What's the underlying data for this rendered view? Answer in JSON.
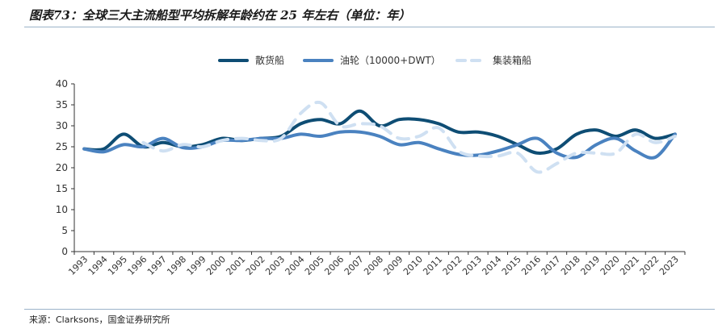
{
  "title": "图表73：全球三大主流船型平均拆解年龄约在 25 年左右（单位：年）",
  "source": "来源：Clarksons，国金证券研究所",
  "chart_data": {
    "type": "line",
    "title": "图表73：全球三大主流船型平均拆解年龄约在 25 年左右（单位：年）",
    "x": [
      "1993",
      "1994",
      "1995",
      "1996",
      "1997",
      "1998",
      "1999",
      "2000",
      "2001",
      "2002",
      "2003",
      "2004",
      "2005",
      "2006",
      "2007",
      "2008",
      "2009",
      "2010",
      "2011",
      "2012",
      "2013",
      "2014",
      "2015",
      "2016",
      "2017",
      "2018",
      "2019",
      "2020",
      "2021",
      "2022",
      "2023"
    ],
    "ylim": [
      0,
      40
    ],
    "yticks": [
      0,
      5,
      10,
      15,
      20,
      25,
      30,
      35,
      40
    ],
    "legend_position": "top",
    "grid": false,
    "series": [
      {
        "name": "散货船",
        "color": "#0e4d74",
        "dash": false,
        "values": [
          24.5,
          24.5,
          28,
          25,
          26,
          25,
          25.5,
          27,
          26.5,
          27,
          27.5,
          30.5,
          31.5,
          30.5,
          33.5,
          30,
          31.5,
          31.5,
          30.5,
          28.5,
          28.5,
          27.5,
          25.5,
          23.5,
          24.5,
          28,
          29,
          27.5,
          29,
          27,
          28
        ]
      },
      {
        "name": "油轮（10000+DWT）",
        "color": "#4a82c0",
        "dash": false,
        "values": [
          24.5,
          23.8,
          25.5,
          25,
          27,
          24.8,
          25,
          26.5,
          26.5,
          27,
          27,
          28,
          27.5,
          28.5,
          28.5,
          27.5,
          25.5,
          26,
          24.5,
          23.2,
          23,
          24,
          25.5,
          27,
          23.5,
          22.5,
          25.5,
          27,
          24,
          22.5,
          28
        ]
      },
      {
        "name": "集装箱船",
        "color": "#cfe0f2",
        "dash": true,
        "values": [
          null,
          null,
          null,
          26,
          24,
          25.5,
          25,
          26.5,
          27,
          26.5,
          27,
          33,
          35.5,
          30,
          30.5,
          30,
          27,
          27.5,
          29.5,
          24,
          22.8,
          22.8,
          23.5,
          19,
          21,
          23.5,
          23.5,
          23.5,
          28,
          26,
          27.5
        ]
      }
    ]
  }
}
